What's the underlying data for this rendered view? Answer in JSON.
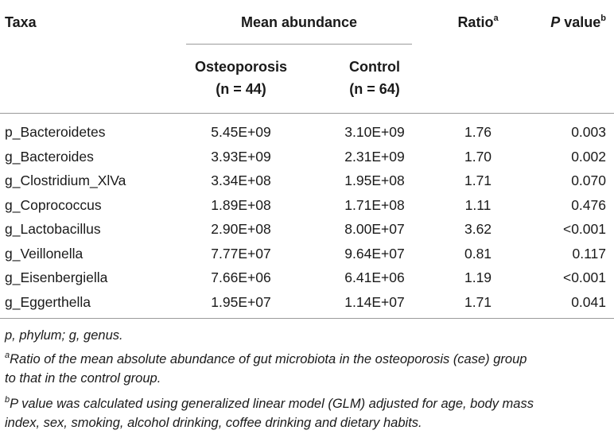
{
  "header": {
    "taxa": "Taxa",
    "mean_abundance": "Mean abundance",
    "ratio": "Ratio",
    "ratio_sup": "a",
    "p_letter": "P",
    "p_rest": " value",
    "p_sup": "b",
    "osteo_line1": "Osteoporosis",
    "osteo_line2": "(n = 44)",
    "control_line1": "Control",
    "control_line2": "(n = 64)"
  },
  "rows": [
    {
      "taxa": "p_Bacteroidetes",
      "osteo": "5.45E+09",
      "control": "3.10E+09",
      "ratio": "1.76",
      "p": "0.003"
    },
    {
      "taxa": "g_Bacteroides",
      "osteo": "3.93E+09",
      "control": "2.31E+09",
      "ratio": "1.70",
      "p": "0.002"
    },
    {
      "taxa": "g_Clostridium_XlVa",
      "osteo": "3.34E+08",
      "control": "1.95E+08",
      "ratio": "1.71",
      "p": "0.070"
    },
    {
      "taxa": "g_Coprococcus",
      "osteo": "1.89E+08",
      "control": "1.71E+08",
      "ratio": "1.11",
      "p": "0.476"
    },
    {
      "taxa": "g_Lactobacillus",
      "osteo": "2.90E+08",
      "control": "8.00E+07",
      "ratio": "3.62",
      "p": "<0.001"
    },
    {
      "taxa": "g_Veillonella",
      "osteo": "7.77E+07",
      "control": "9.64E+07",
      "ratio": "0.81",
      "p": "0.117"
    },
    {
      "taxa": "g_Eisenbergiella",
      "osteo": "7.66E+06",
      "control": "6.41E+06",
      "ratio": "1.19",
      "p": "<0.001"
    },
    {
      "taxa": "g_Eggerthella",
      "osteo": "1.95E+07",
      "control": "1.14E+07",
      "ratio": "1.71",
      "p": "0.041"
    }
  ],
  "footnotes": {
    "abbrev": "p, phylum; g, genus.",
    "a_sup": "a",
    "a_line1": "Ratio of the mean absolute abundance of gut microbiota in the osteoporosis (case) group",
    "a_line2": "to that in the control group.",
    "b_sup": "b",
    "b_line1": "P value was calculated using generalized linear model (GLM) adjusted for age, body mass",
    "b_line2": "index, sex, smoking, alcohol drinking, coffee drinking and dietary habits."
  }
}
